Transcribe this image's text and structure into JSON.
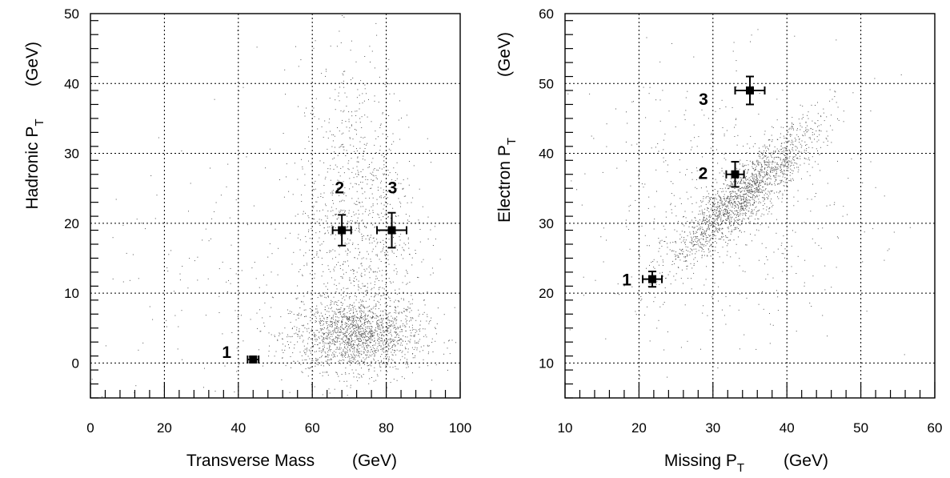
{
  "chart_data": [
    {
      "type": "scatter",
      "xlabel": "Transverse  Mass",
      "xunit": "(GeV)",
      "ylabel": "Hadronic  P",
      "ylabel_sub": "T",
      "yunit": "(GeV)",
      "xlim": [
        0,
        100
      ],
      "ylim": [
        -5,
        50
      ],
      "xticks": [
        0,
        20,
        40,
        60,
        80,
        100
      ],
      "yticks": [
        0,
        10,
        20,
        30,
        40,
        50
      ],
      "grid": true,
      "points": [
        {
          "label": "1",
          "x": 44,
          "y": 0.5,
          "xerr": 1.5,
          "yerr": 0.4
        },
        {
          "label": "2",
          "x": 68,
          "y": 19,
          "xerr": 2.5,
          "yerr": 2.2
        },
        {
          "label": "3",
          "x": 81.5,
          "y": 19,
          "xerr": 4,
          "yerr": 2.5
        }
      ],
      "background_density": [
        {
          "cx": 72,
          "cy": 4,
          "sx": 9,
          "sy": 2.5,
          "n": 1600
        },
        {
          "cx": 72,
          "cy": 20,
          "sx": 8,
          "sy": 12,
          "n": 1100
        },
        {
          "cx": 50,
          "cy": 8,
          "sx": 25,
          "sy": 12,
          "n": 250
        }
      ]
    },
    {
      "type": "scatter",
      "xlabel": "Missing  P",
      "xlabel_sub": "T",
      "xunit": "(GeV)",
      "ylabel": "Electron  P",
      "ylabel_sub": "T",
      "yunit": "(GeV)",
      "xlim": [
        10,
        60
      ],
      "ylim": [
        5,
        60
      ],
      "xticks": [
        10,
        20,
        30,
        40,
        50,
        60
      ],
      "yticks": [
        10,
        20,
        30,
        40,
        50,
        60
      ],
      "grid": true,
      "points": [
        {
          "label": "1",
          "x": 21.8,
          "y": 22,
          "xerr": 1.3,
          "yerr": 1.1
        },
        {
          "label": "2",
          "x": 33,
          "y": 37,
          "xerr": 1.2,
          "yerr": 1.8
        },
        {
          "label": "3",
          "x": 35,
          "y": 49,
          "xerr": 2,
          "yerr": 2
        }
      ],
      "background_density": [
        {
          "cx": 34,
          "cy": 34,
          "sx": 5,
          "sy": 5,
          "corr": 0.9,
          "n": 1800
        },
        {
          "cx": 32,
          "cy": 32,
          "sx": 10,
          "sy": 10,
          "n": 500
        }
      ]
    }
  ]
}
